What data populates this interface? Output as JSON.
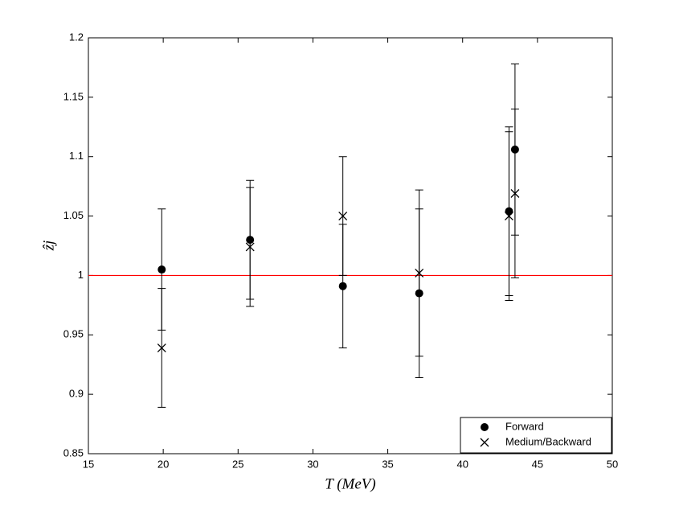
{
  "chart_data": {
    "type": "errorbar-scatter",
    "xlabel": "T (MeV)",
    "ylabel": "ẑj",
    "xlim": [
      15,
      50
    ],
    "xticks": [
      15,
      20,
      25,
      30,
      35,
      40,
      45,
      50
    ],
    "ylim": [
      0.85,
      1.2
    ],
    "yticks": [
      0.85,
      0.9,
      0.95,
      1,
      1.05,
      1.1,
      1.15,
      1.2
    ],
    "reference_line": {
      "value": 1,
      "color": "#ff0000"
    },
    "legend": "lower right",
    "series": [
      {
        "name": "Forward",
        "marker": "circle",
        "color": "#000000",
        "x": [
          19.9,
          25.8,
          32.0,
          37.1,
          43.1,
          43.5
        ],
        "values": [
          1.005,
          1.03,
          0.991,
          0.985,
          1.054,
          1.106
        ],
        "errors": [
          0.051,
          0.05,
          0.052,
          0.071,
          0.071,
          0.072
        ]
      },
      {
        "name": "Medium/Backward",
        "marker": "x",
        "color": "#000000",
        "x": [
          19.9,
          25.8,
          32.0,
          37.1,
          43.1,
          43.5
        ],
        "values": [
          0.939,
          1.024,
          1.05,
          1.002,
          1.05,
          1.069
        ],
        "errors": [
          0.05,
          0.05,
          0.05,
          0.07,
          0.071,
          0.071
        ]
      }
    ]
  }
}
